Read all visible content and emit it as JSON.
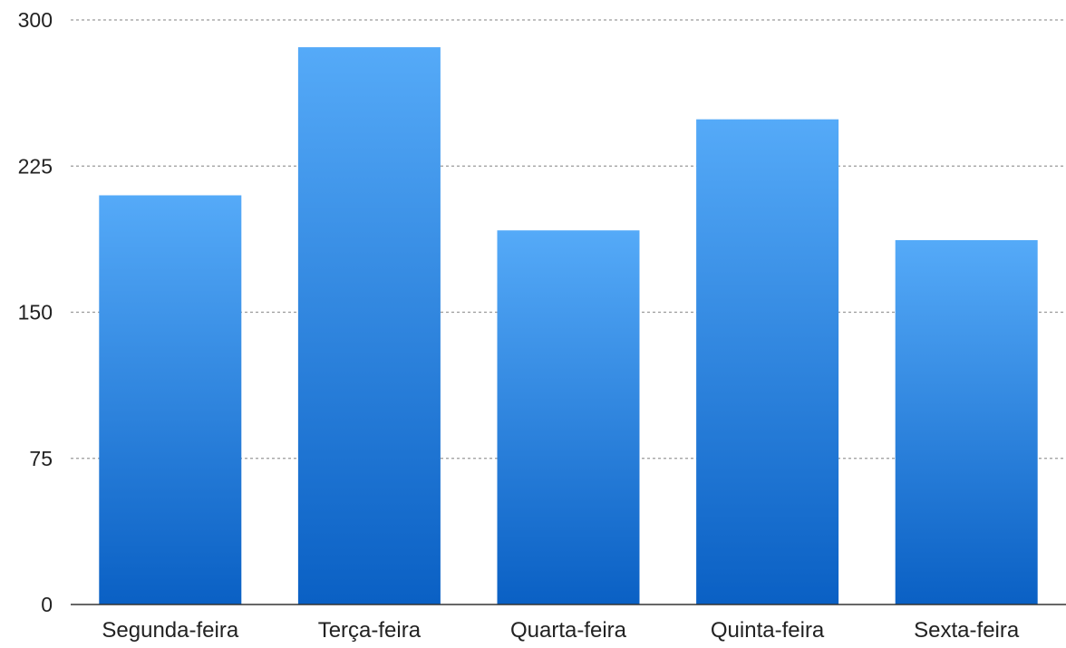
{
  "chart_data": {
    "type": "bar",
    "title": "",
    "xlabel": "",
    "ylabel": "",
    "categories": [
      "Segunda-feira",
      "Terça-feira",
      "Quarta-feira",
      "Quinta-feira",
      "Sexta-feira"
    ],
    "values": [
      210,
      286,
      192,
      249,
      187
    ],
    "ylim": [
      0,
      300
    ],
    "yticks": [
      0,
      75,
      150,
      225,
      300
    ],
    "ytick_labels": [
      "0",
      "75",
      "150",
      "225",
      "300"
    ],
    "grid": true,
    "legend": "none",
    "colors": {
      "bar_top": "#55aaf8",
      "bar_bottom": "#0a60c4",
      "grid": "#9a9a9a",
      "axis": "#333333",
      "text": "#222222"
    }
  }
}
